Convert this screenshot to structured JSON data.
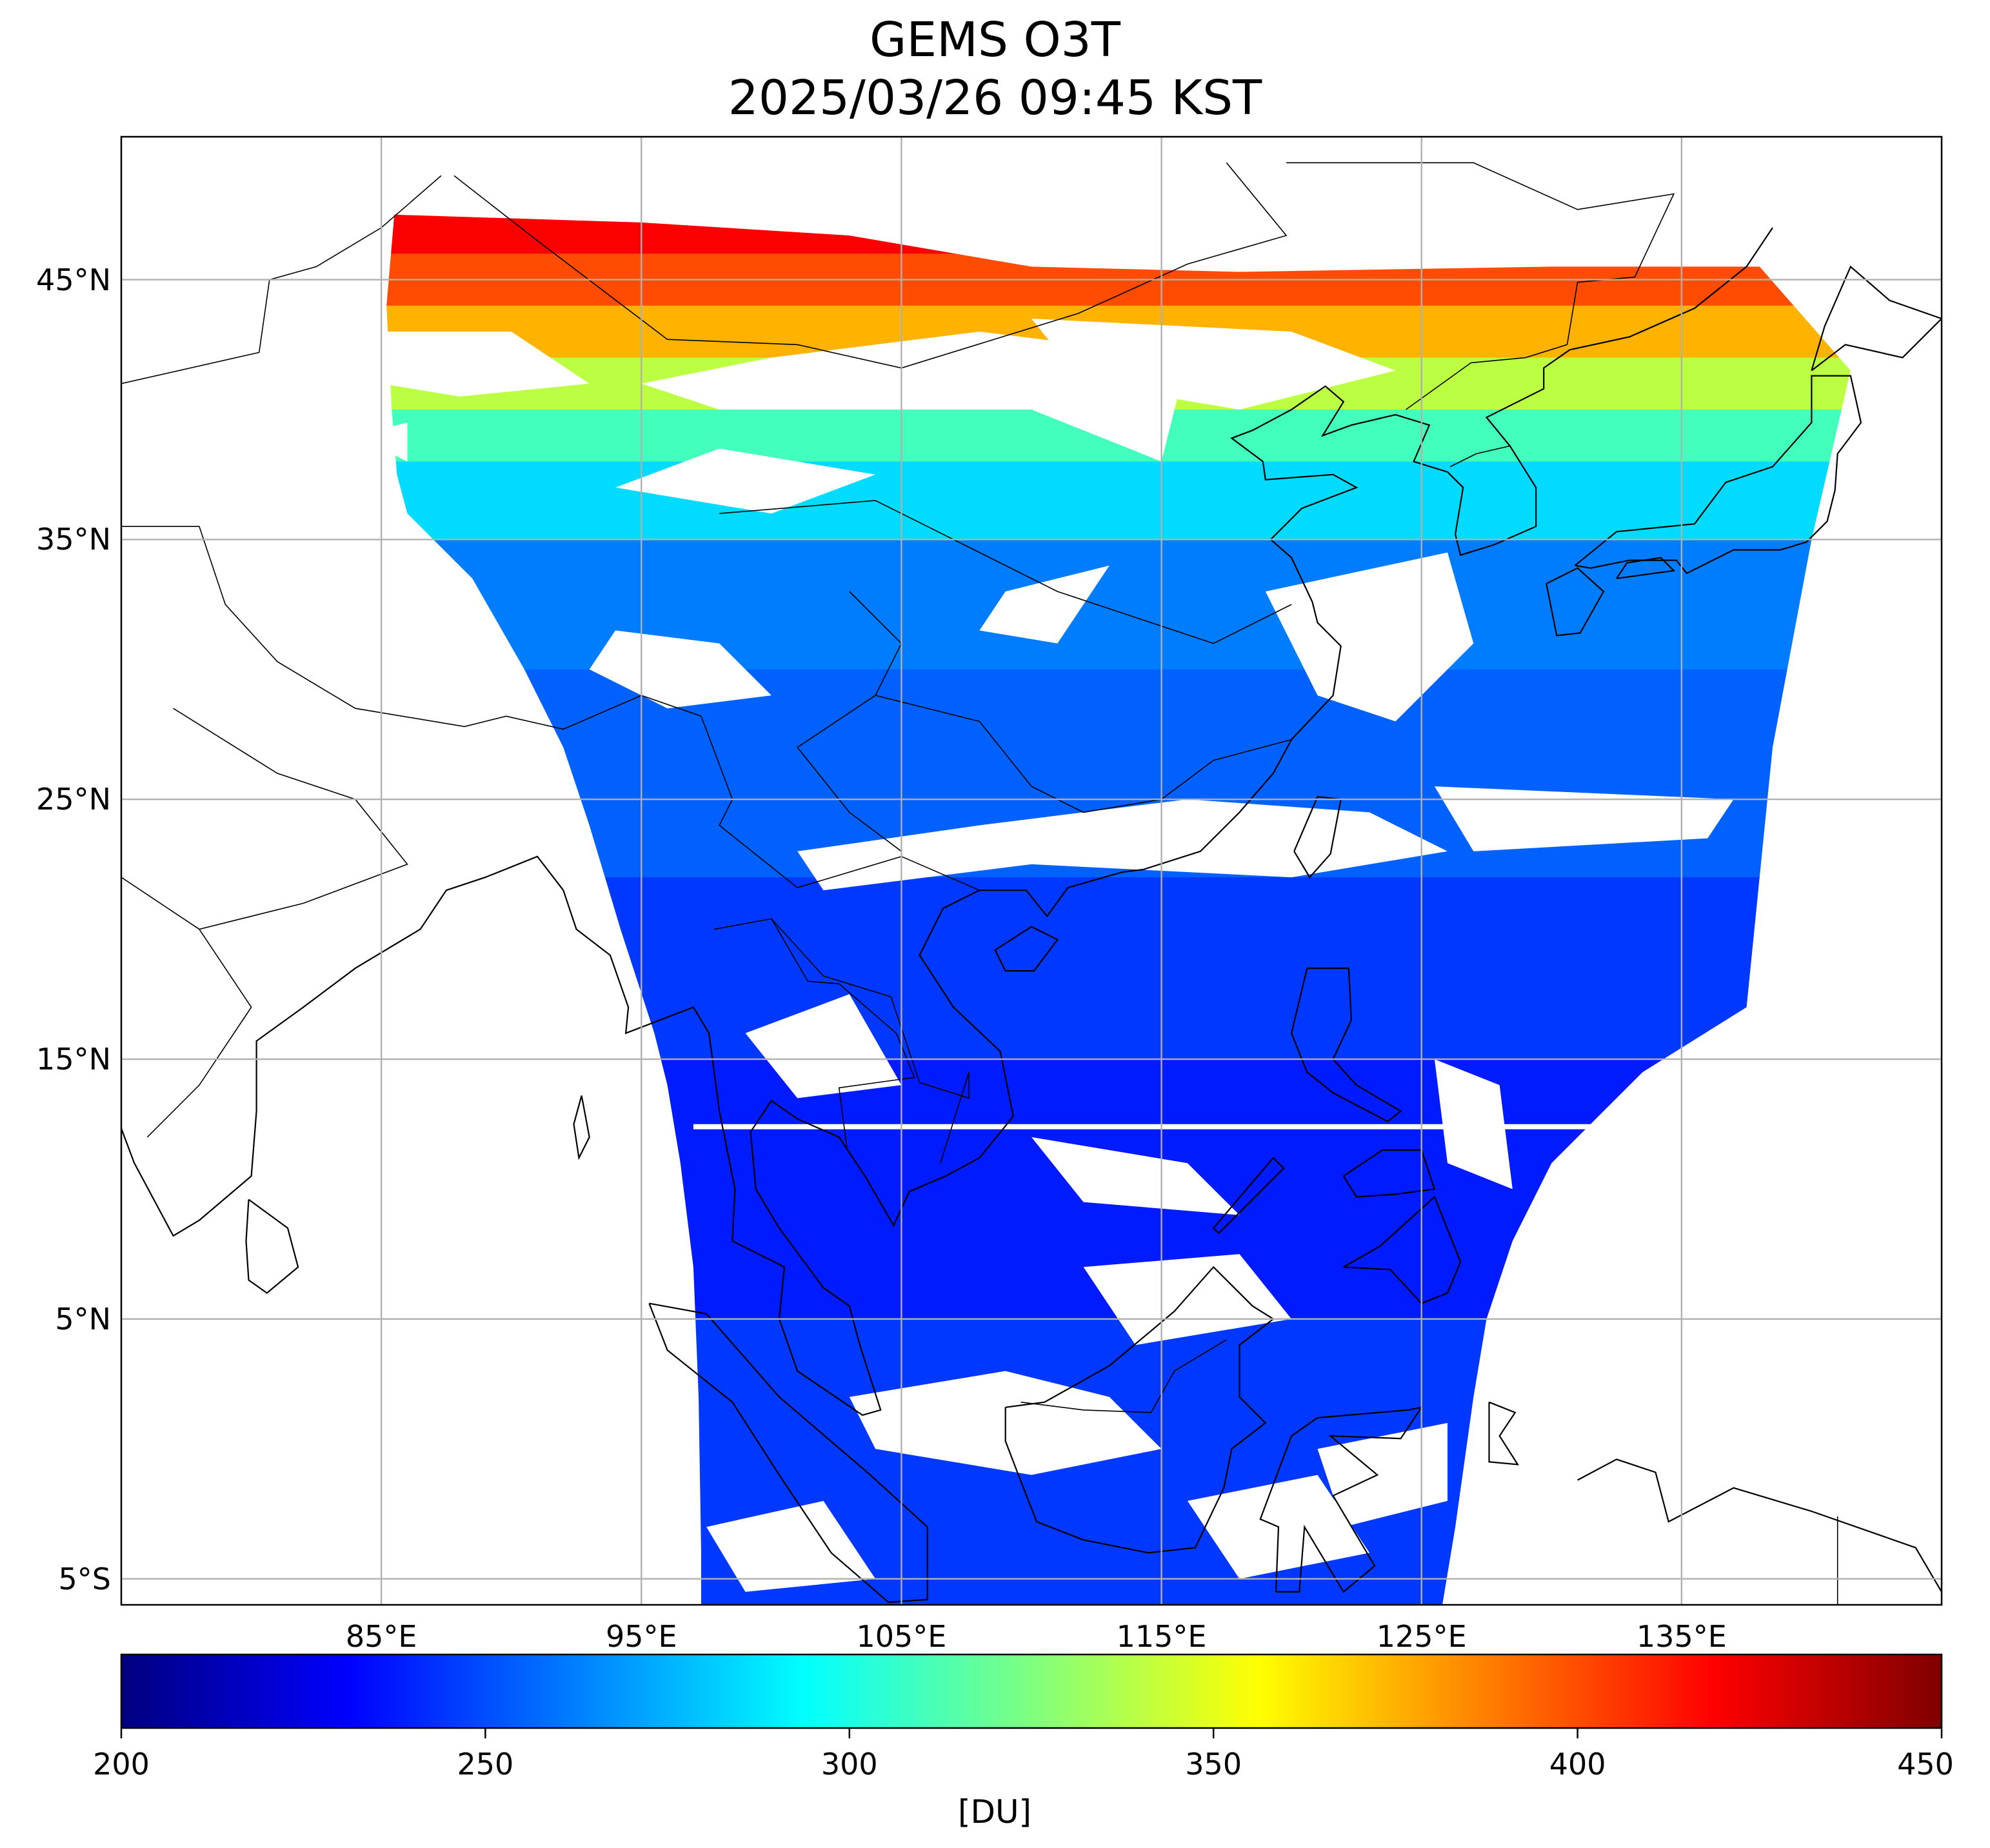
{
  "title": {
    "line1": "GEMS O3T",
    "line2": "2025/03/26 09:45 KST"
  },
  "map": {
    "projection": "lat-lon",
    "lon_range": [
      75,
      145
    ],
    "lat_range": [
      -6,
      50.5
    ],
    "lat_ticks": [
      {
        "value": 45,
        "label": "45°N"
      },
      {
        "value": 35,
        "label": "35°N"
      },
      {
        "value": 25,
        "label": "25°N"
      },
      {
        "value": 15,
        "label": "15°N"
      },
      {
        "value": 5,
        "label": "5°N"
      },
      {
        "value": -5,
        "label": "5°S"
      }
    ],
    "lon_ticks": [
      {
        "value": 85,
        "label": "85°E"
      },
      {
        "value": 95,
        "label": "95°E"
      },
      {
        "value": 105,
        "label": "105°E"
      },
      {
        "value": 115,
        "label": "115°E"
      },
      {
        "value": 125,
        "label": "125°E"
      },
      {
        "value": 135,
        "label": "135°E"
      }
    ],
    "grid": true,
    "gridline_color": "#b0b0b0",
    "land_outline_color": "#000000",
    "swath_bottom_latitude": -6
  },
  "colorbar": {
    "colormap": "jet",
    "min": 200,
    "max": 450,
    "ticks": [
      {
        "value": 200,
        "label": "200"
      },
      {
        "value": 250,
        "label": "250"
      },
      {
        "value": 300,
        "label": "300"
      },
      {
        "value": 350,
        "label": "350"
      },
      {
        "value": 400,
        "label": "400"
      },
      {
        "value": 450,
        "label": "450"
      }
    ],
    "unit_label": "[DU]",
    "colors": [
      "#00007f",
      "#0000ff",
      "#007fff",
      "#00ffff",
      "#7fff7f",
      "#ffff00",
      "#ff7f00",
      "#ff0000",
      "#7f0000"
    ]
  },
  "ozone_bands": [
    {
      "lat_from": 48,
      "lat_to": 46,
      "du": 420
    },
    {
      "lat_from": 46,
      "lat_to": 44,
      "du": 400
    },
    {
      "lat_from": 44,
      "lat_to": 42,
      "du": 375
    },
    {
      "lat_from": 42,
      "lat_to": 40,
      "du": 340
    },
    {
      "lat_from": 40,
      "lat_to": 38,
      "du": 310
    },
    {
      "lat_from": 38,
      "lat_to": 35,
      "du": 285
    },
    {
      "lat_from": 35,
      "lat_to": 30,
      "du": 262
    },
    {
      "lat_from": 30,
      "lat_to": 22,
      "du": 255
    },
    {
      "lat_from": 22,
      "lat_to": 15,
      "du": 245
    },
    {
      "lat_from": 15,
      "lat_to": 5,
      "du": 238
    },
    {
      "lat_from": 5,
      "lat_to": -6,
      "du": 245
    }
  ]
}
